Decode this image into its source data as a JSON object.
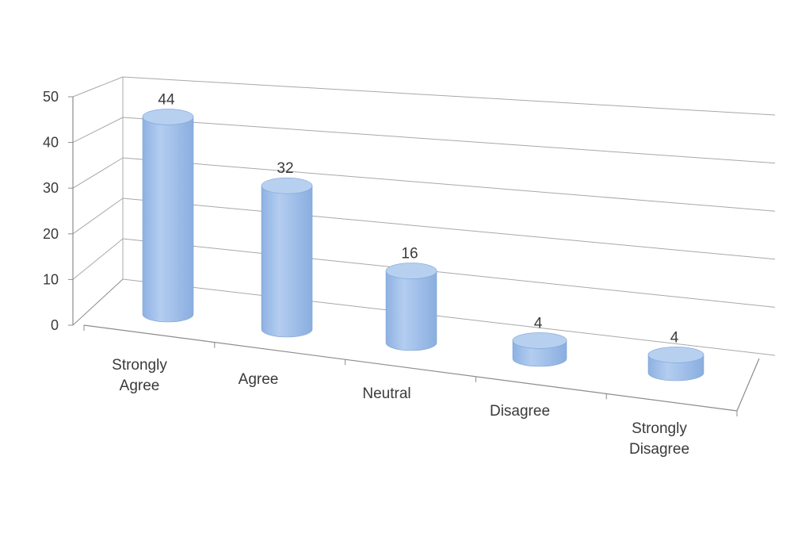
{
  "chart_data": {
    "type": "bar",
    "style": "3d-cylinder",
    "categories": [
      "Strongly Agree",
      "Agree",
      "Neutral",
      "Disagree",
      "Strongly Disagree"
    ],
    "category_lines": [
      [
        "Strongly",
        "Agree"
      ],
      [
        "Agree"
      ],
      [
        "Neutral"
      ],
      [
        "Disagree"
      ],
      [
        "Strongly",
        "Disagree"
      ]
    ],
    "values": [
      44,
      32,
      16,
      4,
      4
    ],
    "data_labels": [
      "44",
      "32",
      "16",
      "4",
      "4"
    ],
    "title": "",
    "xlabel": "",
    "ylabel": "",
    "ylim": [
      0,
      50
    ],
    "yticks": [
      0,
      10,
      20,
      30,
      40,
      50
    ],
    "ytick_labels": [
      "0",
      "10",
      "20",
      "30",
      "40",
      "50"
    ],
    "grid": true,
    "legend": "none",
    "colors": {
      "bar_body": "#9dbde8",
      "bar_top": "#b8d0f0",
      "bar_edge": "#7ea4d6",
      "grid": "#a8a8a8",
      "axis": "#8c8c8c",
      "text": "#3a3a3a"
    }
  }
}
